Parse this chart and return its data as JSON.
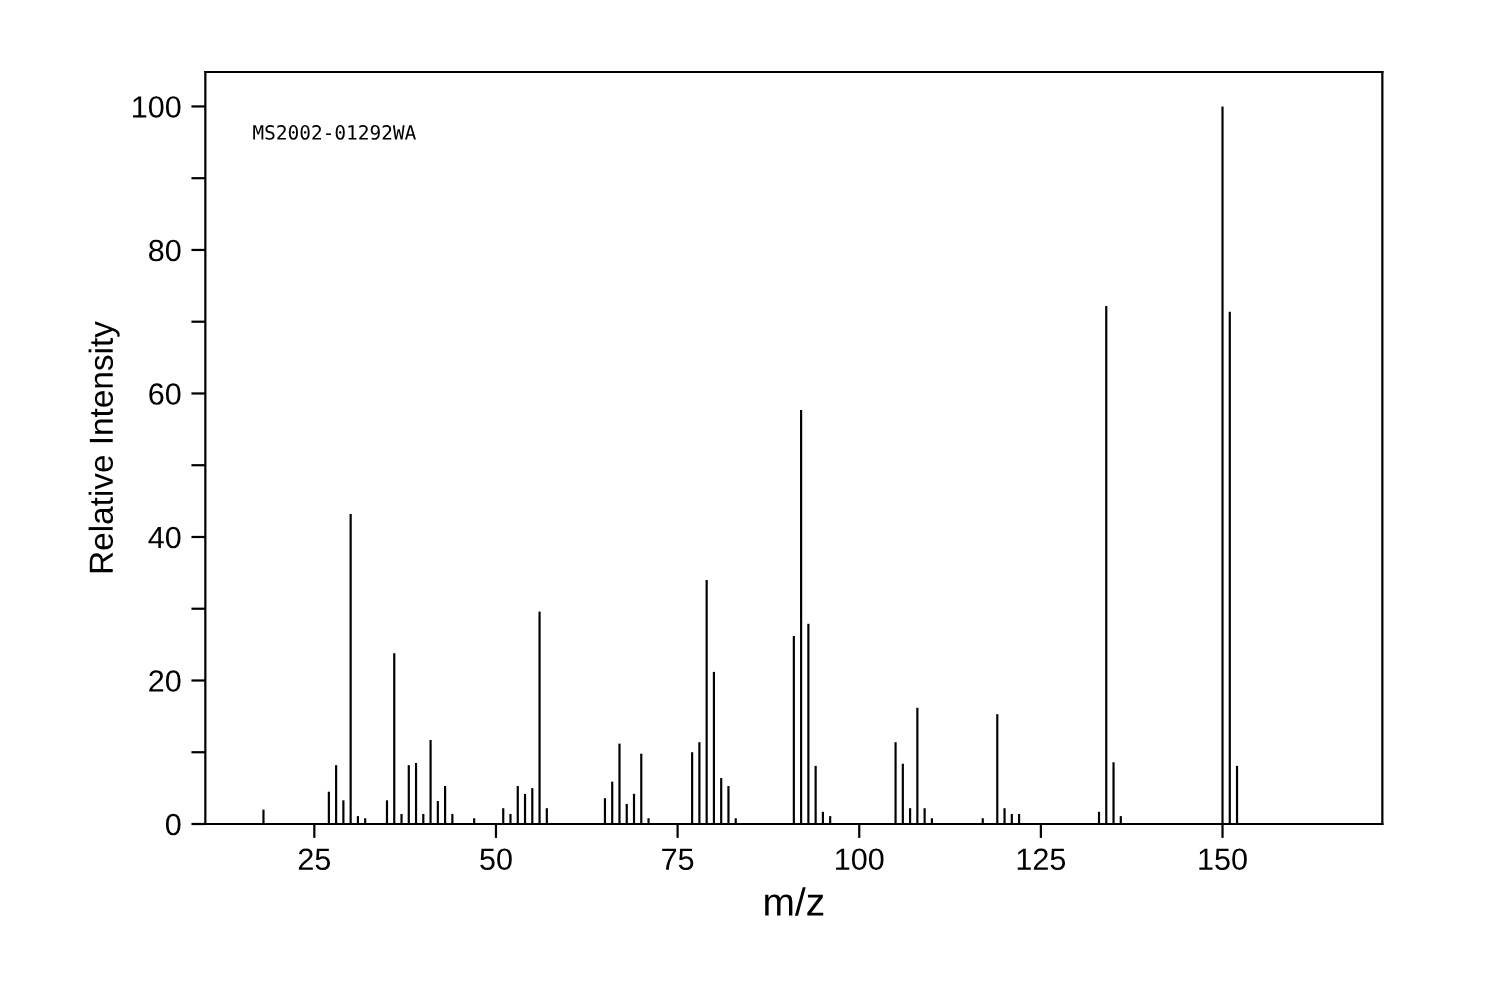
{
  "chart_data": {
    "type": "bar",
    "xlabel": "m/z",
    "ylabel": "Relative Intensity",
    "annotations": [
      "MS2002-01292WA"
    ],
    "x": [
      18,
      27,
      28,
      29,
      30,
      31,
      32,
      35,
      36,
      37,
      38,
      39,
      40,
      41,
      42,
      43,
      44,
      47,
      51,
      52,
      53,
      54,
      55,
      56,
      57,
      65,
      66,
      67,
      68,
      69,
      70,
      71,
      77,
      78,
      79,
      80,
      81,
      82,
      83,
      91,
      92,
      93,
      94,
      95,
      96,
      105,
      106,
      107,
      108,
      109,
      110,
      117,
      119,
      120,
      121,
      122,
      133,
      134,
      135,
      136,
      150,
      151,
      152
    ],
    "values": [
      2.0,
      4.5,
      8.2,
      3.3,
      43.2,
      1.1,
      0.8,
      3.3,
      23.8,
      1.4,
      8.2,
      8.5,
      1.4,
      11.7,
      3.2,
      5.3,
      1.4,
      0.8,
      2.2,
      1.4,
      5.3,
      4.2,
      5.0,
      29.6,
      2.2,
      3.6,
      5.9,
      11.2,
      2.8,
      4.2,
      9.8,
      0.8,
      10.0,
      11.4,
      34.0,
      21.2,
      6.4,
      5.3,
      0.8,
      26.2,
      57.7,
      27.9,
      8.1,
      1.7,
      1.1,
      11.4,
      8.4,
      2.2,
      16.2,
      2.2,
      0.8,
      0.8,
      15.3,
      2.2,
      1.4,
      1.4,
      1.7,
      72.2,
      8.6,
      1.1,
      100,
      71.4,
      8.1
    ],
    "color": "#000000",
    "xlim": [
      10,
      172
    ],
    "xticks": [
      25,
      50,
      75,
      100,
      125,
      150
    ],
    "ylim": [
      0,
      104.8
    ],
    "yticks": [
      0,
      {
        "value": 10,
        "label": null
      },
      20,
      {
        "value": 30,
        "label": null
      },
      40,
      {
        "value": 50,
        "label": null
      },
      60,
      {
        "value": 70,
        "label": null
      },
      80,
      {
        "value": 90,
        "label": null
      },
      100
    ],
    "grid": false,
    "legend": false
  }
}
